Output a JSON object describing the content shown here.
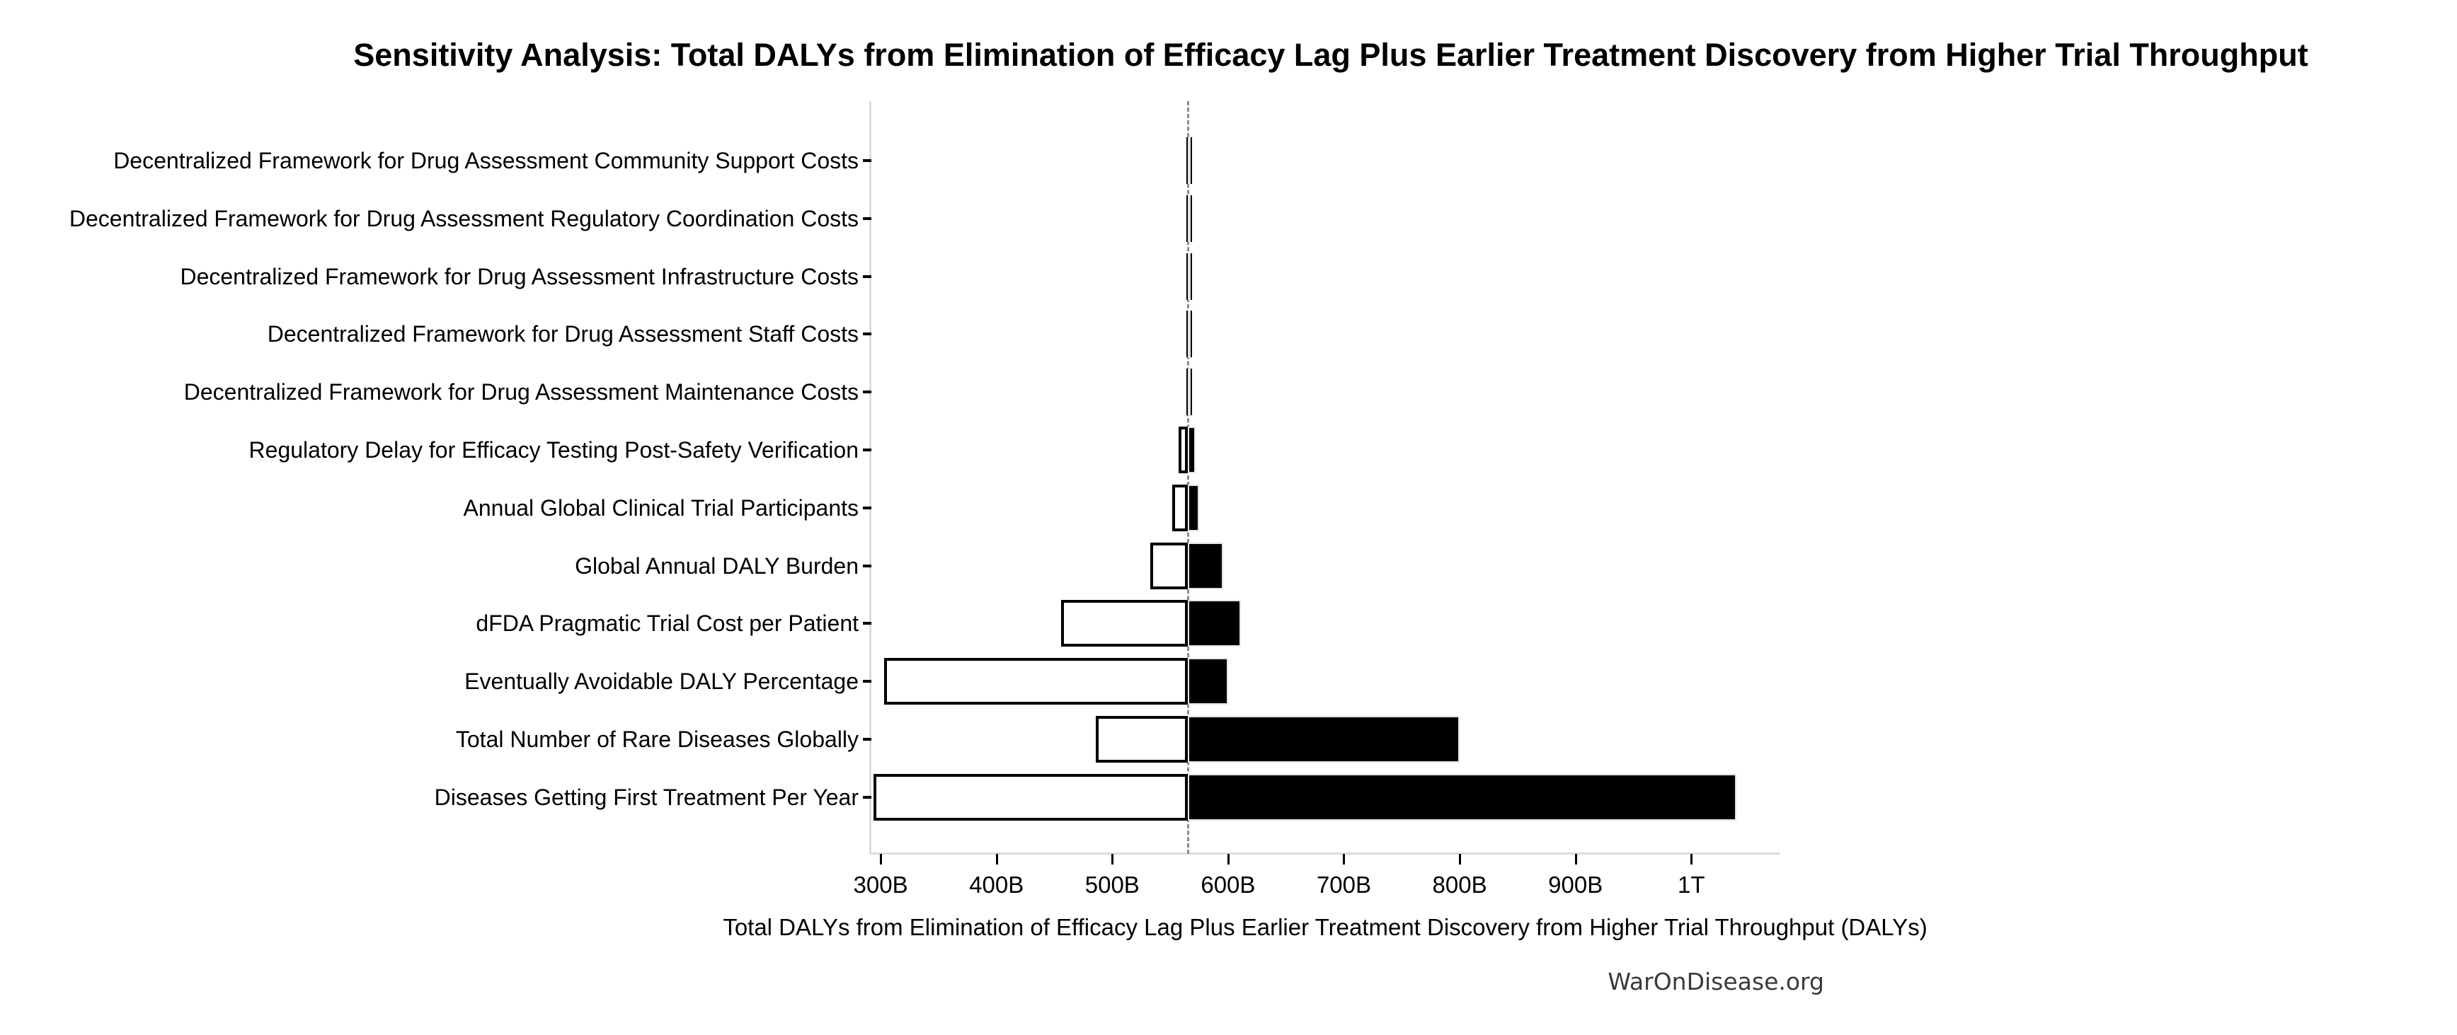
{
  "title": "Sensitivity Analysis: Total DALYs from Elimination of Efficacy Lag Plus Earlier Treatment Discovery from Higher Trial Throughput",
  "footer": "WarOnDisease.org",
  "chart_data": {
    "type": "bar",
    "subtype": "tornado-sensitivity",
    "title": "Sensitivity Analysis: Total DALYs from Elimination of Efficacy Lag Plus Earlier Treatment Discovery from Higher Trial Throughput",
    "xlabel": "Total DALYs from Elimination of Efficacy Lag Plus Earlier Treatment Discovery from Higher Trial Throughput (DALYs)",
    "units": "billions of DALYs",
    "base_value": 565,
    "xlim": [
      292,
      1075
    ],
    "grid": false,
    "legend": "none",
    "colors": {
      "low_fill": "#ffffff",
      "high_fill": "#000000",
      "bar_edge": "#000000",
      "baseline_dash": "#8c8c8c",
      "spine": "#dcdcdc",
      "footer_text": "#3a3a3a"
    },
    "x_ticks": [
      {
        "value": 300,
        "label": "300B"
      },
      {
        "value": 400,
        "label": "400B"
      },
      {
        "value": 500,
        "label": "500B"
      },
      {
        "value": 600,
        "label": "600B"
      },
      {
        "value": 700,
        "label": "700B"
      },
      {
        "value": 800,
        "label": "800B"
      },
      {
        "value": 900,
        "label": "900B"
      },
      {
        "value": 1000,
        "label": "1T"
      }
    ],
    "rows": [
      {
        "label": "Decentralized Framework for Drug Assessment Community Support Costs",
        "low": 564,
        "high": 566
      },
      {
        "label": "Decentralized Framework for Drug Assessment Regulatory Coordination Costs",
        "low": 564,
        "high": 566
      },
      {
        "label": "Decentralized Framework for Drug Assessment Infrastructure Costs",
        "low": 564,
        "high": 566
      },
      {
        "label": "Decentralized Framework for Drug Assessment Staff Costs",
        "low": 564,
        "high": 566
      },
      {
        "label": "Decentralized Framework for Drug Assessment Maintenance Costs",
        "low": 564,
        "high": 566
      },
      {
        "label": "Regulatory Delay for Efficacy Testing Post-Safety Verification",
        "low": 557,
        "high": 572
      },
      {
        "label": "Annual Global Clinical Trial Participants",
        "low": 552,
        "high": 575
      },
      {
        "label": "Global Annual DALY Burden",
        "low": 533,
        "high": 596
      },
      {
        "label": "dFDA Pragmatic Trial Cost per Patient",
        "low": 456,
        "high": 611
      },
      {
        "label": "Eventually Avoidable DALY Percentage",
        "low": 303,
        "high": 600
      },
      {
        "label": "Total Number of Rare Diseases Globally",
        "low": 486,
        "high": 800
      },
      {
        "label": "Diseases Getting First Treatment Per Year",
        "low": 294,
        "high": 1039
      }
    ]
  }
}
